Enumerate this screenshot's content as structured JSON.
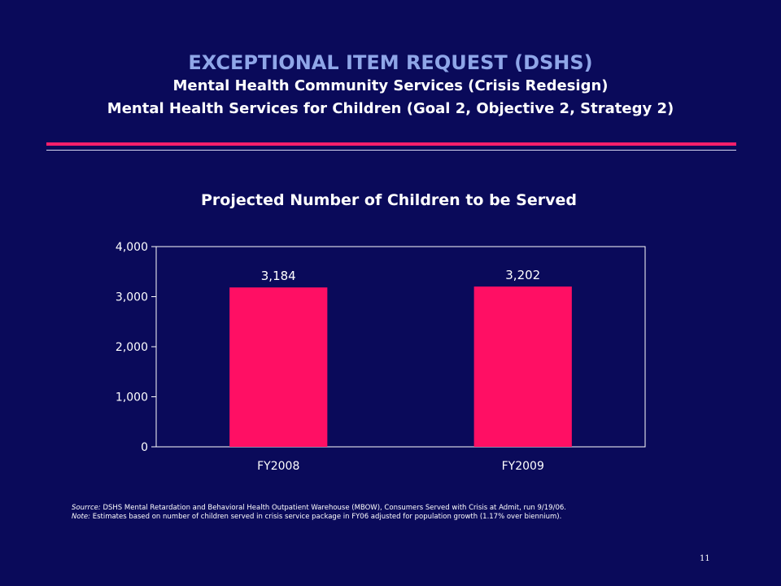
{
  "slide": {
    "title": "EXCEPTIONAL ITEM REQUEST (DSHS)",
    "subtitle_1": "Mental Health Community Services (Crisis Redesign)",
    "subtitle_2": "Mental Health Services for Children (Goal 2, Objective 2, Strategy 2)",
    "source_label": "Sourrce:",
    "source_text": " DSHS Mental Retardation and Behavioral Health Outpatient Warehouse (MBOW), Consumers Served with Crisis at Admit, run 9/19/06.",
    "note_label": "Note:",
    "note_text": " Estimates based on number of children served in crisis service package in FY06 adjusted for population growth (1.17% over biennium).",
    "page_number": "11"
  },
  "colors": {
    "background": "#0a0a5a",
    "title": "#8fa6e8",
    "accent": "#ff1f6b",
    "bar": "#ff0f64"
  },
  "chart_data": {
    "type": "bar",
    "title": "Projected Number of Children to be Served",
    "categories": [
      "FY2008",
      "FY2009"
    ],
    "values": [
      3184,
      3202
    ],
    "value_labels": [
      "3,184",
      "3,202"
    ],
    "ylim": [
      0,
      4000
    ],
    "yticks": [
      0,
      1000,
      2000,
      3000,
      4000
    ],
    "ytick_labels": [
      "0",
      "1,000",
      "2,000",
      "3,000",
      "4,000"
    ],
    "xlabel": "",
    "ylabel": "",
    "grid": false,
    "legend": "none"
  }
}
